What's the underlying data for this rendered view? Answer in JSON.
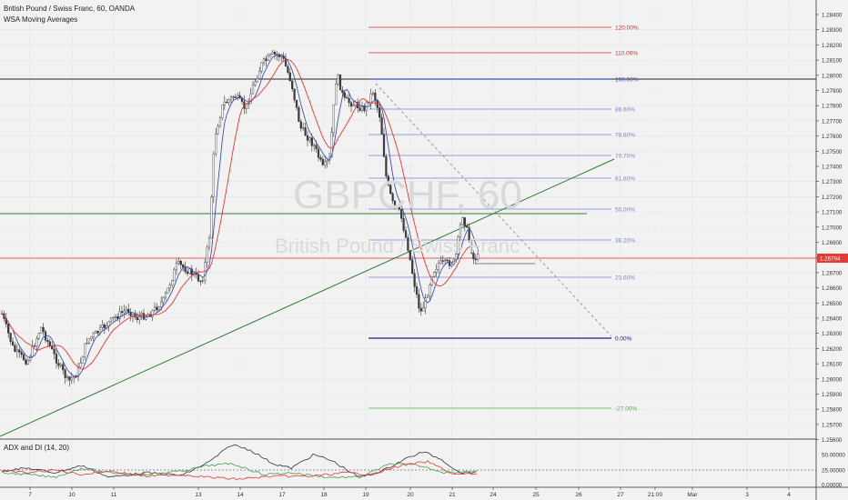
{
  "header": {
    "symbol_title": "British Pound / Swiss Franc, 60, OANDA",
    "indicator": "WSA Moving Averages"
  },
  "watermark": {
    "ticker": "GBPCHF, 60",
    "name": "British Pound / Swiss Franc"
  },
  "indicator_panel": {
    "title": "ADX and DI (14, 20)",
    "axis_labels": [
      "50.00000",
      "25.00000",
      "0.00000"
    ]
  },
  "price_axis": {
    "labels": [
      "1.28400",
      "1.28300",
      "1.28200",
      "1.28100",
      "1.28000",
      "1.27900",
      "1.27800",
      "1.27700",
      "1.27600",
      "1.27500",
      "1.27400",
      "1.27300",
      "1.27200",
      "1.27100",
      "1.27000",
      "1.26900",
      "1.26800",
      "1.26700",
      "1.26600",
      "1.26500",
      "1.26400",
      "1.26300",
      "1.26200",
      "1.26100",
      "1.26000",
      "1.25900",
      "1.25800",
      "1.25700",
      "1.25600"
    ],
    "current_price": "1.26794"
  },
  "time_axis": {
    "labels": [
      "7",
      "10",
      "11",
      "13",
      "14",
      "17",
      "18",
      "19",
      "20",
      "21",
      "24",
      "25",
      "26",
      "27",
      "21:00",
      "Mar",
      "3",
      "4"
    ]
  },
  "fibonacci": {
    "levels": [
      {
        "label": "120.00%",
        "color": "#d32f2f"
      },
      {
        "label": "110.00%",
        "color": "#d32f2f"
      },
      {
        "label": "100.00%",
        "color": "#3f51b5"
      },
      {
        "label": "88.60%",
        "color": "#7986cb"
      },
      {
        "label": "78.60%",
        "color": "#7986cb"
      },
      {
        "label": "70.70%",
        "color": "#7986cb"
      },
      {
        "label": "61.80%",
        "color": "#7986cb"
      },
      {
        "label": "50.00%",
        "color": "#7986cb"
      },
      {
        "label": "38.20%",
        "color": "#7986cb"
      },
      {
        "label": "23.60%",
        "color": "#7986cb"
      },
      {
        "label": "0.00%",
        "color": "#1a237e"
      },
      {
        "label": "-27.00%",
        "color": "#4caf50"
      }
    ]
  },
  "colors": {
    "background": "#f2f2f2",
    "candle_up": "#ffffff",
    "candle_down": "#3a3a3a",
    "ma_fast": "#3f51b5",
    "ma_slow": "#e53935",
    "trendline": "#2e7d32",
    "current_price": "#e53935"
  }
}
